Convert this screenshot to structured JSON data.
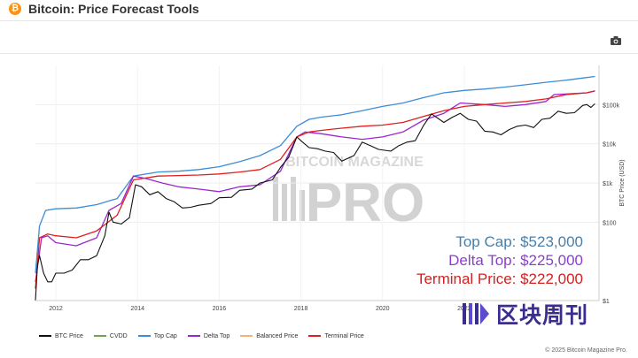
{
  "header": {
    "logo_glyph": "₿",
    "title": "Bitcoin: Price Forecast Tools",
    "camera_icon": "camera-icon"
  },
  "watermark_bg": {
    "top_text": "BITCOIN MAGAZINE",
    "main_text": "PRO"
  },
  "annotations": [
    {
      "text": "Top Cap: $523,000",
      "color": "#4a7fa8"
    },
    {
      "text": "Delta Top: $225,000",
      "color": "#8b3fd0"
    },
    {
      "text": "Terminal Price: $222,000",
      "color": "#d42020"
    }
  ],
  "watermark": {
    "text": "区块周刊",
    "icon": "blockweekly-logo-icon"
  },
  "copyright": "© 2025 Bitcoin Magazine Pro.",
  "chart_data": {
    "type": "line",
    "xlabel": "",
    "ylabel": "BTC Price (USD)",
    "y_scale": "log",
    "xlim": [
      2011.5,
      2025.3
    ],
    "ylim": [
      1,
      1000000
    ],
    "x_ticks": [
      "2012",
      "2014",
      "2016",
      "2018",
      "2020",
      "2022"
    ],
    "y_ticks": [
      {
        "value": 1,
        "label": "$1"
      },
      {
        "value": 100,
        "label": "$100"
      },
      {
        "value": 1000,
        "label": "$1k"
      },
      {
        "value": 10000,
        "label": "$10k"
      },
      {
        "value": 100000,
        "label": "$100k"
      }
    ],
    "legend_position": "bottom",
    "grid": true,
    "legend": [
      {
        "name": "BTC Price",
        "color": "#111111"
      },
      {
        "name": "CVDD",
        "color": "#6aa84f"
      },
      {
        "name": "Top Cap",
        "color": "#3c8dd8"
      },
      {
        "name": "Delta Top",
        "color": "#9c27d0"
      },
      {
        "name": "Balanced Price",
        "color": "#f0b27a"
      },
      {
        "name": "Terminal Price",
        "color": "#e02020"
      }
    ],
    "series": [
      {
        "name": "Top Cap",
        "color": "#3c8dd8",
        "x": [
          2011.5,
          2011.6,
          2011.75,
          2012.0,
          2012.5,
          2013.0,
          2013.5,
          2013.9,
          2014.5,
          2015.0,
          2015.5,
          2016.0,
          2016.5,
          2017.0,
          2017.5,
          2017.9,
          2018.2,
          2018.5,
          2019.0,
          2019.5,
          2020.0,
          2020.5,
          2021.0,
          2021.5,
          2022.0,
          2022.5,
          2023.0,
          2023.5,
          2024.0,
          2024.5,
          2025.0,
          2025.2
        ],
        "values": [
          5,
          80,
          200,
          220,
          230,
          280,
          400,
          1500,
          1900,
          2000,
          2200,
          2600,
          3500,
          5000,
          9000,
          28000,
          42000,
          48000,
          55000,
          70000,
          90000,
          110000,
          150000,
          200000,
          230000,
          250000,
          280000,
          320000,
          370000,
          420000,
          490000,
          523000
        ]
      },
      {
        "name": "Delta Top",
        "color": "#9c27d0",
        "x": [
          2011.5,
          2011.65,
          2011.8,
          2012.0,
          2012.5,
          2013.0,
          2013.3,
          2013.6,
          2013.9,
          2014.2,
          2014.6,
          2015.0,
          2015.5,
          2016.0,
          2016.5,
          2017.0,
          2017.5,
          2017.9,
          2018.1,
          2018.5,
          2019.0,
          2019.5,
          2020.0,
          2020.5,
          2021.0,
          2021.5,
          2021.9,
          2022.5,
          2023.0,
          2023.5,
          2024.0,
          2024.2,
          2024.6,
          2025.0,
          2025.2
        ],
        "values": [
          3,
          40,
          45,
          30,
          25,
          40,
          200,
          300,
          1500,
          1300,
          1000,
          800,
          700,
          600,
          800,
          900,
          2000,
          15000,
          20000,
          18000,
          15000,
          13000,
          15000,
          20000,
          40000,
          60000,
          110000,
          100000,
          90000,
          100000,
          120000,
          180000,
          190000,
          200000,
          225000
        ]
      },
      {
        "name": "Terminal Price",
        "color": "#e02020",
        "x": [
          2011.5,
          2011.6,
          2011.8,
          2012.0,
          2012.5,
          2013.0,
          2013.5,
          2013.9,
          2014.5,
          2015.0,
          2015.5,
          2016.0,
          2016.5,
          2017.0,
          2017.5,
          2017.9,
          2018.2,
          2018.5,
          2019.0,
          2019.5,
          2020.0,
          2020.5,
          2021.0,
          2021.5,
          2022.0,
          2022.5,
          2023.0,
          2023.5,
          2024.0,
          2024.5,
          2025.0,
          2025.2
        ],
        "values": [
          2,
          40,
          50,
          45,
          40,
          60,
          150,
          1200,
          1500,
          1550,
          1600,
          1700,
          1900,
          2200,
          4000,
          15000,
          20000,
          22000,
          25000,
          28000,
          30000,
          35000,
          50000,
          70000,
          90000,
          100000,
          110000,
          120000,
          140000,
          180000,
          200000,
          222000
        ]
      },
      {
        "name": "BTC Price",
        "color": "#111111",
        "x": [
          2011.5,
          2011.55,
          2011.6,
          2011.7,
          2011.8,
          2011.9,
          2012.0,
          2012.2,
          2012.4,
          2012.6,
          2012.8,
          2013.0,
          2013.2,
          2013.3,
          2013.4,
          2013.6,
          2013.8,
          2013.95,
          2014.1,
          2014.3,
          2014.5,
          2014.7,
          2014.9,
          2015.1,
          2015.3,
          2015.5,
          2015.8,
          2016.0,
          2016.3,
          2016.5,
          2016.8,
          2017.0,
          2017.3,
          2017.5,
          2017.7,
          2017.9,
          2018.0,
          2018.2,
          2018.4,
          2018.6,
          2018.8,
          2019.0,
          2019.3,
          2019.5,
          2019.7,
          2019.9,
          2020.2,
          2020.4,
          2020.6,
          2020.8,
          2021.0,
          2021.2,
          2021.5,
          2021.7,
          2021.9,
          2022.1,
          2022.3,
          2022.5,
          2022.7,
          2022.9,
          2023.1,
          2023.3,
          2023.5,
          2023.7,
          2023.9,
          2024.1,
          2024.3,
          2024.5,
          2024.7,
          2024.9,
          2025.0,
          2025.1,
          2025.2
        ],
        "values": [
          1,
          8,
          14,
          5,
          3,
          3,
          5,
          5,
          6,
          11,
          11,
          14,
          45,
          180,
          100,
          90,
          130,
          900,
          800,
          500,
          600,
          400,
          330,
          230,
          240,
          270,
          300,
          420,
          430,
          650,
          700,
          1000,
          1200,
          2500,
          4500,
          15000,
          12000,
          8000,
          7500,
          6500,
          6000,
          3600,
          5000,
          11000,
          9000,
          7200,
          6500,
          9000,
          11000,
          12000,
          29000,
          58000,
          35000,
          47000,
          60000,
          42000,
          38000,
          21000,
          20000,
          17000,
          23000,
          28000,
          30000,
          26000,
          42000,
          45000,
          68000,
          60000,
          62000,
          95000,
          100000,
          85000,
          105000
        ]
      }
    ]
  }
}
